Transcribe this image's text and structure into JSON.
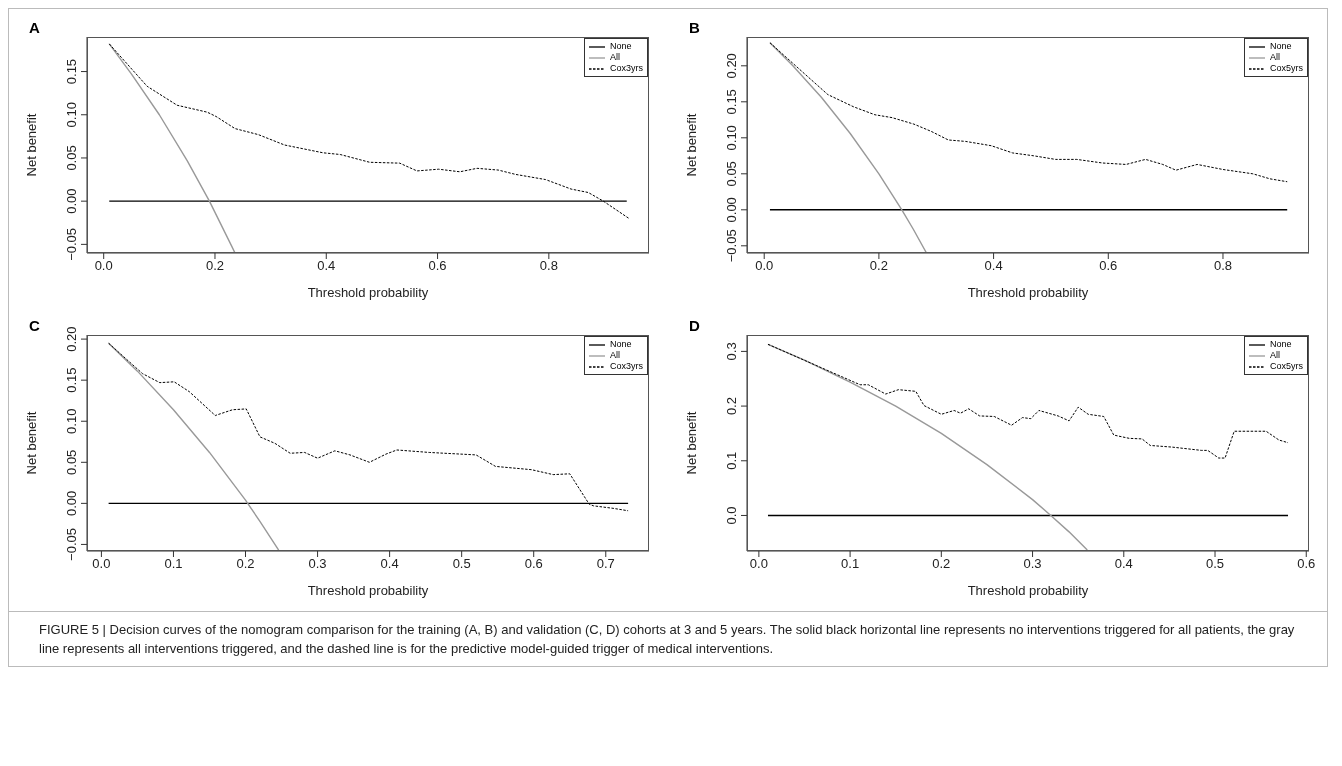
{
  "chart_data": [
    {
      "type": "line",
      "title": "A",
      "xlabel": "Threshold probability",
      "ylabel": "Net benefit",
      "legend": "top right",
      "xlim": [
        -0.03,
        0.98
      ],
      "ylim": [
        -0.06,
        0.19
      ],
      "xticks": [
        {
          "value": 0,
          "label": "0.0"
        },
        {
          "value": 0.2,
          "label": "0.2"
        },
        {
          "value": 0.4,
          "label": "0.4"
        },
        {
          "value": 0.6,
          "label": "0.6"
        },
        {
          "value": 0.8,
          "label": "0.8"
        }
      ],
      "yticks": [
        {
          "value": -0.05,
          "label": "−0.05"
        },
        {
          "value": 0,
          "label": "0.00"
        },
        {
          "value": 0.05,
          "label": "0.05"
        },
        {
          "value": 0.1,
          "label": "0.10"
        },
        {
          "value": 0.15,
          "label": "0.15"
        }
      ],
      "series": [
        {
          "name": "None",
          "color": "#000000",
          "line_style": "solid",
          "x": [
            0.01,
            0.94
          ],
          "values": [
            0,
            0
          ]
        },
        {
          "name": "All",
          "color": "#999999",
          "line_style": "solid",
          "x": [
            0.01,
            0.05,
            0.1,
            0.15,
            0.19,
            0.2,
            0.23,
            0.236
          ],
          "values": [
            0.182,
            0.147,
            0.1,
            0.047,
            0,
            -0.013,
            -0.052,
            -0.06
          ]
        },
        {
          "name": "Cox3yrs",
          "color": "#000000",
          "line_style": "dashed",
          "x": [
            0.01,
            0.078,
            0.132,
            0.186,
            0.202,
            0.236,
            0.278,
            0.325,
            0.394,
            0.425,
            0.478,
            0.532,
            0.563,
            0.602,
            0.64,
            0.671,
            0.709,
            0.74,
            0.794,
            0.84,
            0.871,
            0.898,
            0.944
          ],
          "values": [
            0.182,
            0.133,
            0.111,
            0.103,
            0.098,
            0.084,
            0.077,
            0.065,
            0.056,
            0.054,
            0.045,
            0.044,
            0.035,
            0.037,
            0.034,
            0.038,
            0.036,
            0.031,
            0.025,
            0.014,
            0.01,
            0,
            -0.02
          ]
        }
      ]
    },
    {
      "type": "line",
      "title": "B",
      "xlabel": "Threshold probability",
      "ylabel": "Net benefit",
      "legend": "top right",
      "xlim": [
        -0.03,
        0.95
      ],
      "ylim": [
        -0.06,
        0.24
      ],
      "xticks": [
        {
          "value": 0,
          "label": "0.0"
        },
        {
          "value": 0.2,
          "label": "0.2"
        },
        {
          "value": 0.4,
          "label": "0.4"
        },
        {
          "value": 0.6,
          "label": "0.6"
        },
        {
          "value": 0.8,
          "label": "0.8"
        }
      ],
      "yticks": [
        {
          "value": -0.05,
          "label": "−0.05"
        },
        {
          "value": 0,
          "label": "0.00"
        },
        {
          "value": 0.05,
          "label": "0.05"
        },
        {
          "value": 0.1,
          "label": "0.10"
        },
        {
          "value": 0.15,
          "label": "0.15"
        },
        {
          "value": 0.2,
          "label": "0.20"
        }
      ],
      "series": [
        {
          "name": "None",
          "color": "#000000",
          "line_style": "solid",
          "x": [
            0.01,
            0.912
          ],
          "values": [
            0,
            0
          ]
        },
        {
          "name": "All",
          "color": "#999999",
          "line_style": "solid",
          "x": [
            0.01,
            0.05,
            0.1,
            0.15,
            0.2,
            0.24,
            0.26,
            0.283
          ],
          "values": [
            0.232,
            0.2,
            0.156,
            0.106,
            0.05,
            0,
            -0.027,
            -0.06
          ]
        },
        {
          "name": "Cox5yrs",
          "color": "#000000",
          "line_style": "dashed",
          "x": [
            0.01,
            0.066,
            0.111,
            0.156,
            0.193,
            0.223,
            0.261,
            0.291,
            0.321,
            0.351,
            0.396,
            0.433,
            0.47,
            0.508,
            0.545,
            0.59,
            0.631,
            0.665,
            0.695,
            0.718,
            0.755,
            0.8,
            0.852,
            0.882,
            0.912
          ],
          "values": [
            0.232,
            0.192,
            0.16,
            0.143,
            0.132,
            0.128,
            0.119,
            0.109,
            0.097,
            0.095,
            0.089,
            0.079,
            0.075,
            0.07,
            0.07,
            0.065,
            0.063,
            0.07,
            0.063,
            0.055,
            0.063,
            0.056,
            0.05,
            0.043,
            0.039
          ]
        }
      ]
    },
    {
      "type": "line",
      "title": "C",
      "xlabel": "Threshold probability",
      "ylabel": "Net benefit",
      "legend": "top right",
      "xlim": [
        -0.02,
        0.76
      ],
      "ylim": [
        -0.058,
        0.205
      ],
      "xticks": [
        {
          "value": 0,
          "label": "0.0"
        },
        {
          "value": 0.1,
          "label": "0.1"
        },
        {
          "value": 0.2,
          "label": "0.2"
        },
        {
          "value": 0.3,
          "label": "0.3"
        },
        {
          "value": 0.4,
          "label": "0.4"
        },
        {
          "value": 0.5,
          "label": "0.5"
        },
        {
          "value": 0.6,
          "label": "0.6"
        },
        {
          "value": 0.7,
          "label": "0.7"
        }
      ],
      "yticks": [
        {
          "value": -0.05,
          "label": "−0.05"
        },
        {
          "value": 0,
          "label": "0.00"
        },
        {
          "value": 0.05,
          "label": "0.05"
        },
        {
          "value": 0.1,
          "label": "0.10"
        },
        {
          "value": 0.15,
          "label": "0.15"
        },
        {
          "value": 0.2,
          "label": "0.20"
        }
      ],
      "series": [
        {
          "name": "None",
          "color": "#000000",
          "line_style": "solid",
          "x": [
            0.01,
            0.731
          ],
          "values": [
            0,
            0
          ]
        },
        {
          "name": "All",
          "color": "#999999",
          "line_style": "solid",
          "x": [
            0.01,
            0.05,
            0.1,
            0.15,
            0.2,
            0.22,
            0.246
          ],
          "values": [
            0.195,
            0.161,
            0.114,
            0.062,
            0.004,
            -0.022,
            -0.057
          ]
        },
        {
          "name": "Cox3yrs",
          "color": "#000000",
          "line_style": "dashed",
          "x": [
            0.01,
            0.057,
            0.081,
            0.101,
            0.122,
            0.158,
            0.182,
            0.201,
            0.22,
            0.241,
            0.262,
            0.282,
            0.3,
            0.324,
            0.345,
            0.372,
            0.395,
            0.41,
            0.455,
            0.52,
            0.547,
            0.597,
            0.627,
            0.65,
            0.677,
            0.683,
            0.71,
            0.731
          ],
          "values": [
            0.195,
            0.158,
            0.147,
            0.148,
            0.136,
            0.107,
            0.114,
            0.115,
            0.081,
            0.073,
            0.061,
            0.062,
            0.055,
            0.064,
            0.059,
            0.05,
            0.06,
            0.065,
            0.062,
            0.059,
            0.045,
            0.041,
            0.035,
            0.036,
            -0.001,
            -0.003,
            -0.006,
            -0.009
          ]
        }
      ]
    },
    {
      "type": "line",
      "title": "D",
      "xlabel": "Threshold probability",
      "ylabel": "Net benefit",
      "legend": "top right",
      "xlim": [
        -0.013,
        0.603
      ],
      "ylim": [
        -0.065,
        0.33
      ],
      "xticks": [
        {
          "value": 0,
          "label": "0.0"
        },
        {
          "value": 0.1,
          "label": "0.1"
        },
        {
          "value": 0.2,
          "label": "0.2"
        },
        {
          "value": 0.3,
          "label": "0.3"
        },
        {
          "value": 0.4,
          "label": "0.4"
        },
        {
          "value": 0.5,
          "label": "0.5"
        },
        {
          "value": 0.6,
          "label": "0.6"
        }
      ],
      "yticks": [
        {
          "value": 0,
          "label": "0.0"
        },
        {
          "value": 0.1,
          "label": "0.1"
        },
        {
          "value": 0.2,
          "label": "0.2"
        },
        {
          "value": 0.3,
          "label": "0.3"
        }
      ],
      "series": [
        {
          "name": "None",
          "color": "#000000",
          "line_style": "solid",
          "x": [
            0.01,
            0.58
          ],
          "values": [
            0,
            0
          ]
        },
        {
          "name": "All",
          "color": "#999999",
          "line_style": "solid",
          "x": [
            0.01,
            0.05,
            0.1,
            0.15,
            0.2,
            0.25,
            0.3,
            0.32,
            0.34,
            0.36
          ],
          "values": [
            0.313,
            0.284,
            0.244,
            0.2,
            0.15,
            0.093,
            0.029,
            0,
            -0.03,
            -0.063
          ]
        },
        {
          "name": "Cox5yrs",
          "color": "#000000",
          "line_style": "dashed",
          "x": [
            0.01,
            0.111,
            0.12,
            0.139,
            0.153,
            0.172,
            0.181,
            0.2,
            0.214,
            0.221,
            0.23,
            0.242,
            0.258,
            0.277,
            0.289,
            0.298,
            0.307,
            0.328,
            0.34,
            0.35,
            0.361,
            0.378,
            0.389,
            0.406,
            0.42,
            0.429,
            0.453,
            0.485,
            0.492,
            0.504,
            0.511,
            0.521,
            0.556,
            0.57,
            0.58
          ],
          "values": [
            0.313,
            0.239,
            0.239,
            0.222,
            0.23,
            0.227,
            0.201,
            0.185,
            0.192,
            0.187,
            0.195,
            0.182,
            0.181,
            0.165,
            0.179,
            0.177,
            0.192,
            0.182,
            0.173,
            0.198,
            0.185,
            0.181,
            0.147,
            0.141,
            0.14,
            0.128,
            0.125,
            0.119,
            0.119,
            0.105,
            0.105,
            0.154,
            0.154,
            0.138,
            0.133
          ]
        }
      ],
      "annotations": [
        "FIGURE 5 | Decision curves of the nomogram comparison for the training (A, B) and validation (C, D) cohorts at 3 and 5 years. The solid black horizontal line represents no interventions triggered for all patients, the gray line represents all interventions triggered, and the dashed line is for the predictive model-guided trigger of medical interventions."
      ]
    }
  ]
}
